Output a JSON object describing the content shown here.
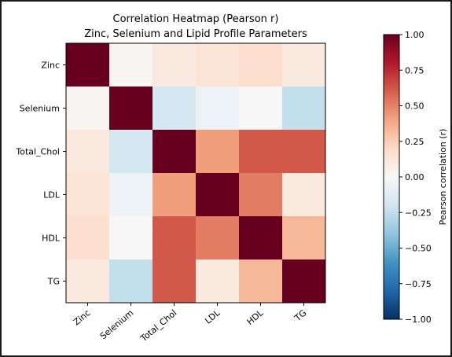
{
  "chart_data": {
    "type": "heatmap",
    "title": "Correlation Heatmap (Pearson r)",
    "subtitle": "Zinc, Selenium and Lipid Profile Parameters",
    "rows": [
      "Zinc",
      "Selenium",
      "Total_Chol",
      "LDL",
      "HDL",
      "TG"
    ],
    "columns": [
      "Zinc",
      "Selenium",
      "Total_Chol",
      "LDL",
      "HDL",
      "TG"
    ],
    "values": [
      [
        1.0,
        0.02,
        0.1,
        0.14,
        0.17,
        0.1
      ],
      [
        0.02,
        1.0,
        -0.18,
        -0.06,
        0.0,
        -0.24
      ],
      [
        0.1,
        -0.18,
        1.0,
        0.42,
        0.62,
        0.62
      ],
      [
        0.14,
        -0.06,
        0.42,
        1.0,
        0.52,
        0.1
      ],
      [
        0.17,
        0.0,
        0.62,
        0.52,
        1.0,
        0.33
      ],
      [
        0.1,
        -0.24,
        0.62,
        0.1,
        0.33,
        1.0
      ]
    ],
    "colorbar": {
      "label": "Pearson correlation (r)",
      "range": [
        -1.0,
        1.0
      ],
      "ticks": [
        "1.00",
        "0.75",
        "0.50",
        "0.25",
        "0.00",
        "−0.25",
        "−0.50",
        "−0.75",
        "−1.00"
      ],
      "colormap": "RdBu_r"
    }
  }
}
